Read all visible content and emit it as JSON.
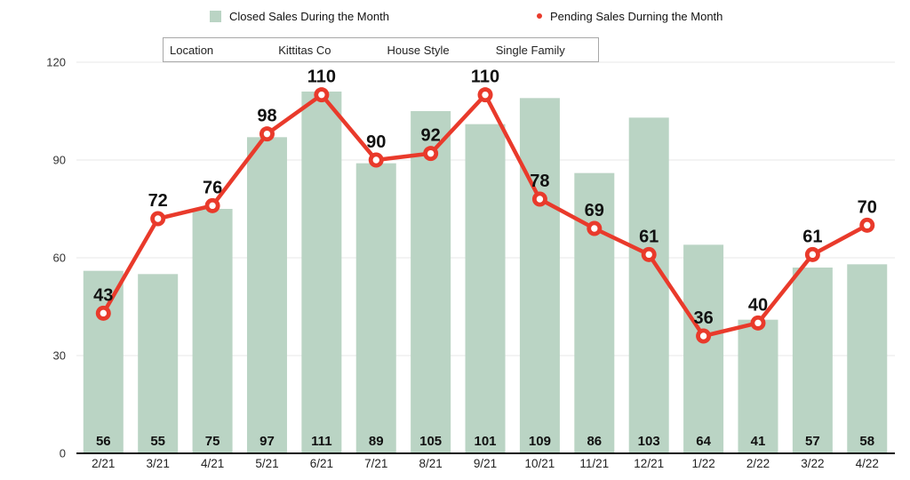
{
  "filter_bar": {
    "location_label": "Location",
    "location_value": "Kittitas Co",
    "style_label": "House Style",
    "style_value": "Single Family"
  },
  "colors": {
    "bar_fill": "#bad4c4",
    "line_stroke": "#e93a2b",
    "gridline": "#e7e7e7",
    "axis_line": "#111111",
    "tick_text": "#333333",
    "value_text": "#111111"
  },
  "chart_data": {
    "type": "combo",
    "categories": [
      "2/21",
      "3/21",
      "4/21",
      "5/21",
      "6/21",
      "7/21",
      "8/21",
      "9/21",
      "10/21",
      "11/21",
      "12/21",
      "1/22",
      "2/22",
      "3/22",
      "4/22"
    ],
    "series": [
      {
        "name": "Closed Sales During the Month",
        "type": "bar",
        "color": "#bad4c4",
        "values": [
          56,
          55,
          75,
          97,
          111,
          89,
          105,
          101,
          109,
          86,
          103,
          64,
          41,
          57,
          58
        ]
      },
      {
        "name": "Pending Sales Durning the Month",
        "type": "line",
        "color": "#e93a2b",
        "values": [
          43,
          72,
          76,
          98,
          110,
          90,
          92,
          110,
          78,
          69,
          61,
          36,
          40,
          61,
          70
        ]
      }
    ],
    "title": "",
    "xlabel": "",
    "ylabel": "",
    "ylim": [
      0,
      120
    ],
    "yticks": [
      0,
      30,
      60,
      90,
      120
    ],
    "grid": true,
    "legend_position": "top"
  }
}
